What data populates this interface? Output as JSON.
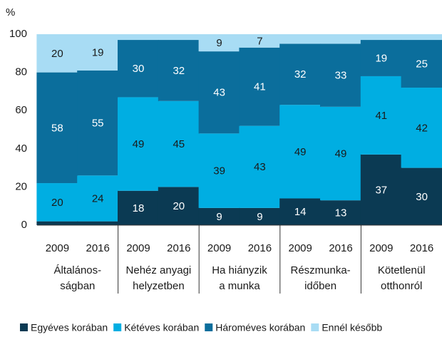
{
  "chart_data": {
    "type": "stacked_bar",
    "y_unit": "%",
    "categories": [
      "2009",
      "2016",
      "2009",
      "2016",
      "2009",
      "2016",
      "2009",
      "2016",
      "2009",
      "2016"
    ],
    "groups": [
      {
        "label": [
          "Általános-",
          "ságban"
        ]
      },
      {
        "label": [
          "Nehéz anyagi",
          "helyzetben"
        ]
      },
      {
        "label": [
          "Ha hiányzik",
          "a munka"
        ]
      },
      {
        "label": [
          "Részmunka-",
          "időben"
        ]
      },
      {
        "label": [
          "Kötetlenül",
          "otthonról"
        ]
      }
    ],
    "series": [
      {
        "name": "Egyéves korában",
        "color": "#0b3a53",
        "label_color": "#ffffff",
        "values": [
          2,
          2,
          18,
          20,
          9,
          9,
          14,
          13,
          37,
          30
        ],
        "value_labels": [
          null,
          null,
          "18",
          "20",
          "9",
          "9",
          "14",
          "13",
          "37",
          "30"
        ]
      },
      {
        "name": "Kétéves korában",
        "color": "#00aee2",
        "label_color": "#1a1a1a",
        "values": [
          20,
          24,
          49,
          45,
          39,
          43,
          49,
          49,
          41,
          42
        ],
        "value_labels": [
          "20",
          "24",
          "49",
          "45",
          "39",
          "43",
          "49",
          "49",
          "41",
          "42"
        ]
      },
      {
        "name": "Hároméves korában",
        "color": "#0b6e9c",
        "label_color": "#ffffff",
        "values": [
          58,
          55,
          30,
          32,
          43,
          41,
          32,
          33,
          19,
          25
        ],
        "value_labels": [
          "58",
          "55",
          "30",
          "32",
          "43",
          "41",
          "32",
          "33",
          "19",
          "25"
        ]
      },
      {
        "name": "Ennél később",
        "color": "#a8dcf4",
        "label_color": "#1a1a1a",
        "values": [
          20,
          19,
          3,
          3,
          9,
          7,
          5,
          5,
          3,
          3
        ],
        "value_labels": [
          "20",
          "19",
          null,
          null,
          "9",
          "7",
          null,
          null,
          null,
          null
        ]
      }
    ],
    "ylim": [
      0,
      100
    ],
    "yticks": [
      0,
      20,
      40,
      60,
      80,
      100
    ],
    "grid": false
  }
}
